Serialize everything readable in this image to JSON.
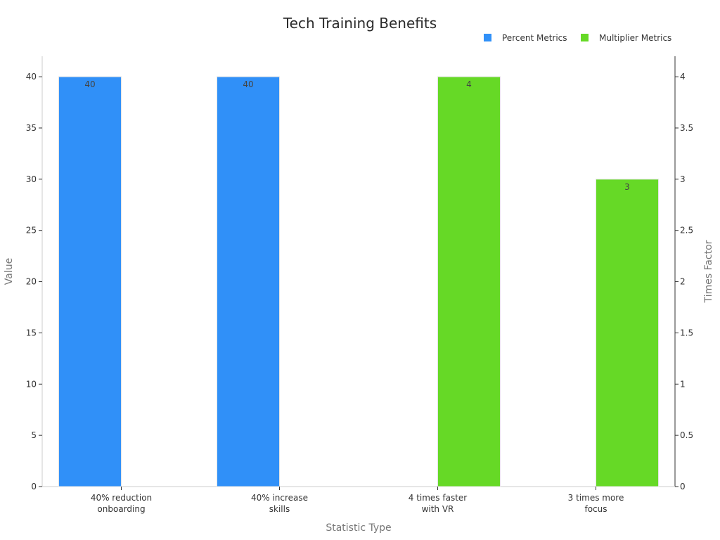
{
  "chart_data": {
    "type": "bar",
    "title": "Tech Training Benefits",
    "xlabel": "Statistic Type",
    "ylabel": "Value",
    "y2label": "Times Factor",
    "categories": [
      [
        "40% reduction",
        "onboarding"
      ],
      [
        "40% increase",
        "skills"
      ],
      [
        "4 times faster",
        "with VR"
      ],
      [
        "3 times more",
        "focus"
      ]
    ],
    "series": [
      {
        "name": "Percent Metrics",
        "axis": "left",
        "color": "#3090f8",
        "values": [
          40,
          40,
          null,
          null
        ]
      },
      {
        "name": "Multiplier Metrics",
        "axis": "right",
        "color": "#66d926",
        "values": [
          null,
          null,
          4,
          3
        ]
      }
    ],
    "ylim": [
      0,
      42
    ],
    "y2lim": [
      0,
      4.2
    ],
    "yticks": [
      0,
      5,
      10,
      15,
      20,
      25,
      30,
      35,
      40
    ],
    "y2ticks": [
      "0",
      "0.5",
      "1",
      "1.5",
      "2",
      "2.5",
      "3",
      "3.5",
      "4"
    ],
    "legend_position": "top-right",
    "grid": false
  }
}
